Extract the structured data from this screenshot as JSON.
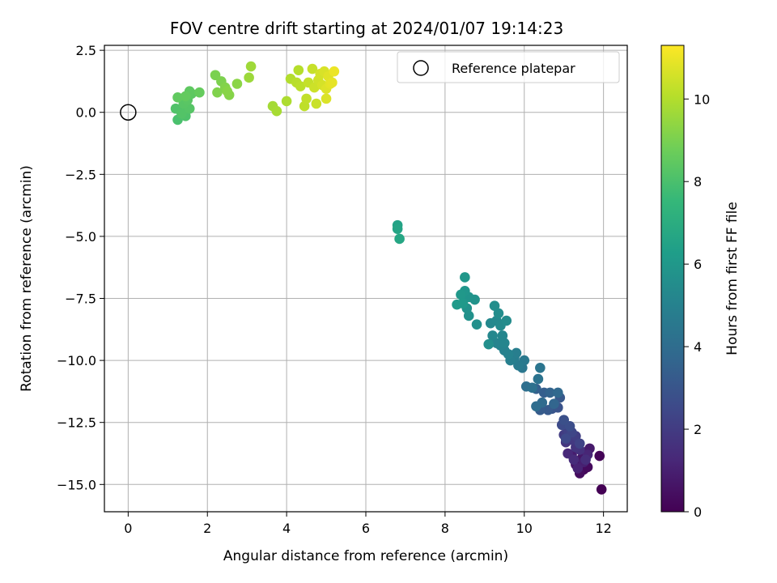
{
  "chart_data": {
    "type": "scatter",
    "title": "FOV centre drift starting at 2024/01/07 19:14:23",
    "xlabel": "Angular distance from reference (arcmin)",
    "ylabel": "Rotation from reference (arcmin)",
    "xlim": [
      -0.6,
      12.6
    ],
    "ylim": [
      -16.1,
      2.7
    ],
    "xticks": [
      0,
      2,
      4,
      6,
      8,
      10,
      12
    ],
    "yticks": [
      2.5,
      0.0,
      -2.5,
      -5.0,
      -7.5,
      -10.0,
      -12.5,
      -15.0
    ],
    "xtick_labels": [
      "0",
      "2",
      "4",
      "6",
      "8",
      "10",
      "12"
    ],
    "ytick_labels": [
      "2.5",
      "0.0",
      "−2.5",
      "−5.0",
      "−7.5",
      "−10.0",
      "−12.5",
      "−15.0"
    ],
    "grid": true,
    "legend": {
      "placement": "top-right",
      "entries": [
        "Reference platepar"
      ]
    },
    "reference_point": {
      "x": 0,
      "y": 0
    },
    "colorbar": {
      "label": "Hours from first FF file",
      "range": [
        0,
        11.3
      ],
      "ticks": [
        0,
        2,
        4,
        6,
        8,
        10
      ],
      "tick_labels": [
        "0",
        "2",
        "4",
        "6",
        "8",
        "10"
      ],
      "colormap": "viridis",
      "colors": [
        "#440154",
        "#482878",
        "#3e4989",
        "#31688e",
        "#26828e",
        "#1f9e89",
        "#35b779",
        "#6ece58",
        "#b5de2b",
        "#fde725"
      ]
    },
    "points": [
      [
        11.95,
        -15.2,
        0.0
      ],
      [
        11.9,
        -13.85,
        0.1
      ],
      [
        11.5,
        -14.4,
        0.2
      ],
      [
        11.6,
        -14.3,
        0.3
      ],
      [
        11.4,
        -14.55,
        0.4
      ],
      [
        11.55,
        -13.7,
        0.5
      ],
      [
        11.3,
        -14.2,
        0.6
      ],
      [
        11.45,
        -13.95,
        0.7
      ],
      [
        11.65,
        -13.55,
        0.8
      ],
      [
        11.2,
        -13.8,
        0.9
      ],
      [
        11.5,
        -14.1,
        1.0
      ],
      [
        11.35,
        -14.35,
        1.1
      ],
      [
        11.6,
        -13.8,
        1.2
      ],
      [
        11.1,
        -13.75,
        1.3
      ],
      [
        11.25,
        -14.0,
        1.4
      ],
      [
        11.55,
        -14.0,
        1.5
      ],
      [
        11.4,
        -13.6,
        1.6
      ],
      [
        11.3,
        -13.5,
        1.7
      ],
      [
        11.05,
        -13.3,
        1.8
      ],
      [
        11.2,
        -13.2,
        1.9
      ],
      [
        11.0,
        -13.0,
        2.0
      ],
      [
        11.3,
        -13.05,
        2.1
      ],
      [
        11.1,
        -12.8,
        2.2
      ],
      [
        11.4,
        -13.35,
        2.3
      ],
      [
        11.2,
        -12.9,
        2.4
      ],
      [
        11.05,
        -13.15,
        2.5
      ],
      [
        10.95,
        -12.6,
        2.6
      ],
      [
        11.15,
        -12.65,
        2.7
      ],
      [
        11.0,
        -12.4,
        2.8
      ],
      [
        10.85,
        -11.9,
        2.9
      ],
      [
        10.7,
        -11.95,
        3.0
      ],
      [
        10.9,
        -11.5,
        3.1
      ],
      [
        10.6,
        -12.0,
        3.2
      ],
      [
        10.4,
        -12.0,
        3.3
      ],
      [
        10.5,
        -11.3,
        3.4
      ],
      [
        10.3,
        -11.15,
        3.5
      ],
      [
        10.65,
        -11.3,
        3.6
      ],
      [
        10.75,
        -11.75,
        3.7
      ],
      [
        10.85,
        -11.3,
        3.8
      ],
      [
        10.45,
        -11.7,
        3.9
      ],
      [
        10.3,
        -11.85,
        4.0
      ],
      [
        10.05,
        -11.05,
        4.1
      ],
      [
        10.2,
        -11.1,
        4.2
      ],
      [
        10.35,
        -10.75,
        4.3
      ],
      [
        10.4,
        -10.3,
        4.4
      ],
      [
        9.95,
        -10.3,
        4.5
      ],
      [
        10.0,
        -10.0,
        4.6
      ],
      [
        9.85,
        -10.2,
        4.7
      ],
      [
        9.75,
        -9.9,
        4.8
      ],
      [
        9.8,
        -9.7,
        4.85
      ],
      [
        9.65,
        -10.0,
        4.9
      ],
      [
        9.5,
        -9.6,
        4.95
      ],
      [
        9.6,
        -9.75,
        5.0
      ],
      [
        9.4,
        -9.4,
        5.05
      ],
      [
        9.3,
        -9.3,
        5.1
      ],
      [
        9.5,
        -9.3,
        5.15
      ],
      [
        9.45,
        -9.0,
        5.2
      ],
      [
        9.2,
        -9.0,
        5.25
      ],
      [
        9.15,
        -8.5,
        5.3
      ],
      [
        9.3,
        -8.4,
        5.35
      ],
      [
        9.4,
        -8.6,
        5.4
      ],
      [
        9.55,
        -8.4,
        5.45
      ],
      [
        9.35,
        -8.1,
        5.5
      ],
      [
        9.25,
        -7.8,
        5.55
      ],
      [
        9.1,
        -9.35,
        5.6
      ],
      [
        8.8,
        -8.55,
        5.65
      ],
      [
        8.6,
        -8.2,
        5.7
      ],
      [
        8.55,
        -7.9,
        5.75
      ],
      [
        8.75,
        -7.55,
        5.8
      ],
      [
        8.6,
        -7.45,
        5.85
      ],
      [
        8.5,
        -7.2,
        5.9
      ],
      [
        8.5,
        -6.65,
        5.95
      ],
      [
        8.4,
        -7.35,
        6.0
      ],
      [
        8.45,
        -7.7,
        6.05
      ],
      [
        8.3,
        -7.75,
        6.1
      ],
      [
        6.8,
        -4.55,
        6.5
      ],
      [
        6.8,
        -4.7,
        6.6
      ],
      [
        6.85,
        -5.1,
        6.7
      ],
      [
        1.25,
        -0.3,
        8.0
      ],
      [
        1.3,
        0.1,
        8.05
      ],
      [
        1.45,
        -0.15,
        8.1
      ],
      [
        1.2,
        0.15,
        8.15
      ],
      [
        1.35,
        -0.05,
        8.2
      ],
      [
        1.55,
        0.15,
        8.25
      ],
      [
        1.4,
        0.35,
        8.3
      ],
      [
        1.5,
        0.5,
        8.35
      ],
      [
        1.6,
        0.75,
        8.4
      ],
      [
        1.55,
        0.85,
        8.45
      ],
      [
        1.25,
        0.6,
        8.5
      ],
      [
        1.45,
        0.65,
        8.55
      ],
      [
        1.8,
        0.8,
        8.6
      ],
      [
        2.2,
        1.5,
        9.0
      ],
      [
        2.35,
        1.25,
        9.05
      ],
      [
        2.25,
        0.8,
        9.1
      ],
      [
        2.45,
        1.0,
        9.15
      ],
      [
        2.55,
        0.7,
        9.2
      ],
      [
        2.5,
        0.85,
        9.25
      ],
      [
        2.75,
        1.15,
        9.3
      ],
      [
        3.05,
        1.4,
        9.6
      ],
      [
        3.1,
        1.85,
        9.65
      ],
      [
        3.65,
        0.25,
        9.75
      ],
      [
        3.75,
        0.05,
        9.8
      ],
      [
        4.0,
        0.45,
        9.9
      ],
      [
        4.1,
        1.35,
        10.0
      ],
      [
        4.3,
        1.7,
        10.05
      ],
      [
        4.25,
        1.2,
        10.1
      ],
      [
        4.35,
        1.05,
        10.15
      ],
      [
        4.45,
        0.25,
        10.2
      ],
      [
        4.5,
        0.55,
        10.25
      ],
      [
        4.55,
        1.2,
        10.3
      ],
      [
        4.65,
        1.75,
        10.35
      ],
      [
        4.75,
        0.35,
        10.4
      ],
      [
        4.7,
        1.0,
        10.45
      ],
      [
        4.8,
        1.3,
        10.5
      ],
      [
        4.85,
        1.55,
        10.55
      ],
      [
        4.9,
        1.1,
        10.6
      ],
      [
        4.95,
        1.65,
        10.65
      ],
      [
        5.0,
        0.55,
        10.7
      ],
      [
        5.0,
        0.95,
        10.75
      ],
      [
        5.05,
        1.45,
        10.8
      ],
      [
        5.1,
        1.15,
        10.85
      ],
      [
        5.15,
        1.2,
        10.9
      ],
      [
        5.2,
        1.65,
        11.0
      ]
    ]
  }
}
